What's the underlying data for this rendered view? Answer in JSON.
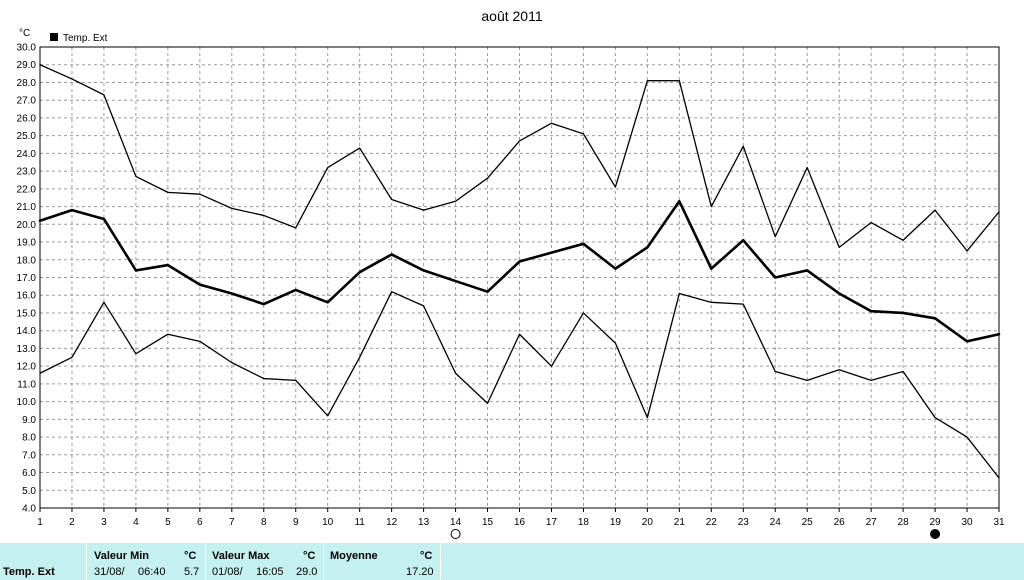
{
  "chart_data": {
    "type": "line",
    "title": "août 2011",
    "ylabel": "°C",
    "xlabel": "",
    "ylim": [
      4.0,
      30.0
    ],
    "xlim": [
      1,
      31
    ],
    "grid": true,
    "legend_position": "top-left",
    "x": [
      1,
      2,
      3,
      4,
      5,
      6,
      7,
      8,
      9,
      10,
      11,
      12,
      13,
      14,
      15,
      16,
      17,
      18,
      19,
      20,
      21,
      22,
      23,
      24,
      25,
      26,
      27,
      28,
      29,
      30,
      31
    ],
    "x_ticks": [
      "1",
      "2",
      "3",
      "4",
      "5",
      "6",
      "7",
      "8",
      "9",
      "10",
      "11",
      "12",
      "13",
      "14",
      "15",
      "16",
      "17",
      "18",
      "19",
      "20",
      "21",
      "22",
      "23",
      "24",
      "25",
      "26",
      "27",
      "28",
      "29",
      "30",
      "31"
    ],
    "y_ticks": [
      "4.0",
      "5.0",
      "6.0",
      "7.0",
      "8.0",
      "9.0",
      "10.0",
      "11.0",
      "12.0",
      "13.0",
      "14.0",
      "15.0",
      "16.0",
      "17.0",
      "18.0",
      "19.0",
      "20.0",
      "21.0",
      "22.0",
      "23.0",
      "24.0",
      "25.0",
      "26.0",
      "27.0",
      "28.0",
      "29.0",
      "30.0"
    ],
    "series": [
      {
        "values": [
          29.0,
          28.2,
          27.3,
          22.7,
          21.8,
          21.7,
          20.9,
          20.5,
          19.8,
          23.2,
          24.3,
          21.4,
          20.8,
          21.3,
          22.6,
          24.7,
          25.7,
          25.1,
          22.1,
          28.1,
          28.1,
          21.0,
          24.4,
          19.3,
          23.2,
          18.7,
          20.1,
          19.1,
          20.8,
          18.5,
          20.7
        ],
        "stroke_width": 1.3
      },
      {
        "name": "Temp. Ext",
        "values": [
          20.2,
          20.8,
          20.3,
          17.4,
          17.7,
          16.6,
          16.1,
          15.5,
          16.3,
          15.6,
          17.3,
          18.3,
          17.4,
          16.8,
          16.2,
          17.9,
          18.4,
          18.9,
          17.5,
          18.7,
          21.3,
          17.5,
          19.1,
          17.0,
          17.4,
          16.1,
          15.1,
          15.0,
          14.7,
          13.4,
          13.8
        ],
        "stroke_width": 2.6
      },
      {
        "values": [
          11.6,
          12.5,
          15.6,
          12.7,
          13.8,
          13.4,
          12.2,
          11.3,
          11.2,
          9.2,
          12.5,
          16.2,
          15.4,
          11.6,
          9.9,
          13.8,
          12.0,
          15.0,
          13.3,
          9.1,
          16.1,
          15.6,
          15.5,
          11.7,
          11.2,
          11.8,
          11.2,
          11.7,
          9.1,
          8.0,
          5.7
        ],
        "stroke_width": 1.3
      }
    ],
    "legend": [
      {
        "label": "Temp. Ext"
      }
    ],
    "moon_markers": [
      {
        "day": 14,
        "phase": "new"
      },
      {
        "day": 29,
        "phase": "full"
      }
    ]
  },
  "summary": {
    "row_label": "Temp. Ext",
    "min_header": "Valeur Min",
    "max_header": "Valeur Max",
    "avg_header": "Moyenne",
    "unit": "°C",
    "min_date": "31/08/",
    "min_time": "06:40",
    "min_value": "5.7",
    "max_date": "01/08/",
    "max_time": "16:05",
    "max_value": "29.0",
    "avg_value": "17.20"
  }
}
